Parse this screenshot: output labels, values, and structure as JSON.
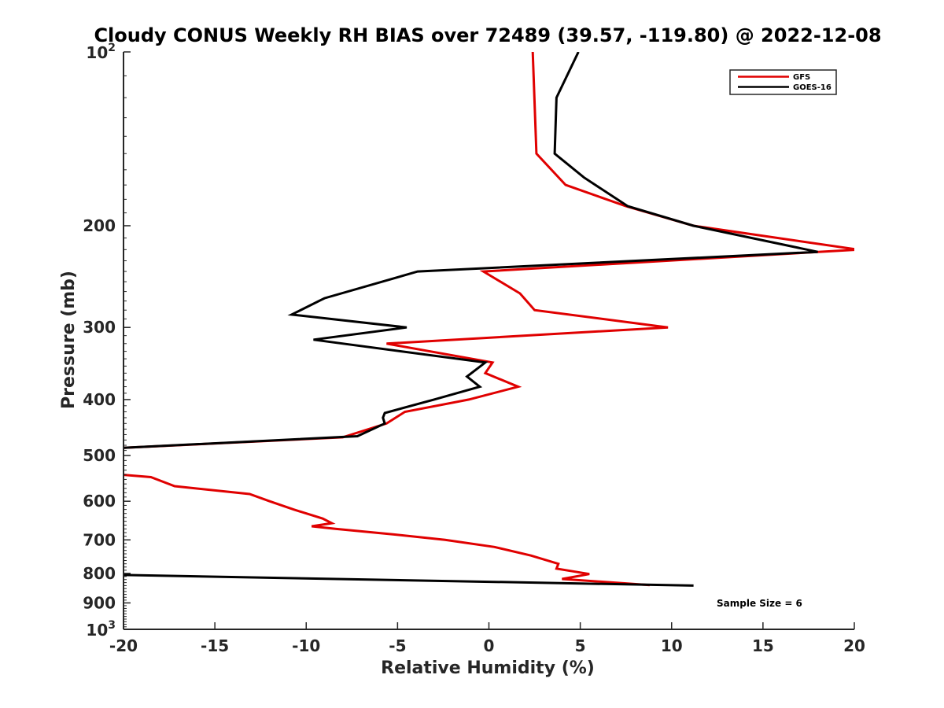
{
  "chart_data": {
    "type": "line",
    "title": "Cloudy CONUS Weekly RH BIAS over 72489 (39.57, -119.80) @ 2022-12-08",
    "xlabel": "Relative Humidity (%)",
    "ylabel": "Pressure (mb)",
    "xlim": [
      -20,
      20
    ],
    "ylim": [
      100,
      1000
    ],
    "y_scale": "log",
    "y_inverted": true,
    "grid": false,
    "legend_position": "top-right",
    "x_ticks": [
      -20,
      -15,
      -10,
      -5,
      0,
      5,
      10,
      15,
      20
    ],
    "x_tick_labels": [
      "-20",
      "-15",
      "-10",
      "-5",
      "0",
      "5",
      "10",
      "15",
      "20"
    ],
    "y_ticks": [
      200,
      300,
      400,
      500,
      600,
      700,
      800,
      900
    ],
    "y_tick_labels": [
      "200",
      "300",
      "400",
      "500",
      "600",
      "700",
      "800",
      "900"
    ],
    "y_end_labels": [
      {
        "value": 100,
        "base": "10",
        "exp": "2"
      },
      {
        "value": 1000,
        "base": "10",
        "exp": "3"
      }
    ],
    "annotation": "Sample Size = 6",
    "series": [
      {
        "name": "GFS",
        "color": "#e00000",
        "segments": [
          [
            {
              "x": 2.4,
              "y": 100
            },
            {
              "x": 2.6,
              "y": 150
            },
            {
              "x": 4.2,
              "y": 170
            },
            {
              "x": 7.5,
              "y": 185
            },
            {
              "x": 11.2,
              "y": 200
            },
            {
              "x": 20.2,
              "y": 220
            },
            {
              "x": -0.3,
              "y": 240
            },
            {
              "x": 1.7,
              "y": 262
            },
            {
              "x": 2.5,
              "y": 280
            },
            {
              "x": 9.8,
              "y": 300
            },
            {
              "x": -5.6,
              "y": 320
            },
            {
              "x": 0.2,
              "y": 345
            },
            {
              "x": -0.2,
              "y": 360
            },
            {
              "x": 1.6,
              "y": 380
            },
            {
              "x": -1.1,
              "y": 400
            },
            {
              "x": -4.6,
              "y": 420
            },
            {
              "x": -5.6,
              "y": 440
            },
            {
              "x": -8.0,
              "y": 465
            },
            {
              "x": -20.0,
              "y": 485
            }
          ],
          [
            {
              "x": -20.0,
              "y": 540
            },
            {
              "x": -18.5,
              "y": 545
            },
            {
              "x": -17.2,
              "y": 565
            },
            {
              "x": -13.1,
              "y": 583
            },
            {
              "x": -12.0,
              "y": 600
            },
            {
              "x": -10.7,
              "y": 620
            },
            {
              "x": -9.1,
              "y": 643
            },
            {
              "x": -8.6,
              "y": 655
            },
            {
              "x": -9.7,
              "y": 663
            },
            {
              "x": -8.4,
              "y": 670
            },
            {
              "x": -5.2,
              "y": 685
            },
            {
              "x": -2.4,
              "y": 700
            },
            {
              "x": 0.3,
              "y": 720
            },
            {
              "x": 2.3,
              "y": 745
            },
            {
              "x": 3.8,
              "y": 770
            },
            {
              "x": 3.7,
              "y": 785
            },
            {
              "x": 5.5,
              "y": 802
            },
            {
              "x": 4.0,
              "y": 818
            },
            {
              "x": 8.8,
              "y": 838
            }
          ]
        ]
      },
      {
        "name": "GOES-16",
        "color": "#000000",
        "segments": [
          [
            {
              "x": 4.9,
              "y": 100
            },
            {
              "x": 3.7,
              "y": 120
            },
            {
              "x": 3.6,
              "y": 150
            },
            {
              "x": 5.2,
              "y": 165
            },
            {
              "x": 7.6,
              "y": 185
            },
            {
              "x": 11.2,
              "y": 200
            },
            {
              "x": 18.0,
              "y": 222
            },
            {
              "x": -3.9,
              "y": 240
            },
            {
              "x": -9.0,
              "y": 267
            },
            {
              "x": -10.8,
              "y": 285
            },
            {
              "x": -4.5,
              "y": 300
            },
            {
              "x": -9.6,
              "y": 315
            },
            {
              "x": -0.2,
              "y": 345
            },
            {
              "x": -1.2,
              "y": 365
            },
            {
              "x": -0.5,
              "y": 380
            },
            {
              "x": -3.0,
              "y": 400
            },
            {
              "x": -5.7,
              "y": 422
            },
            {
              "x": -5.8,
              "y": 430
            },
            {
              "x": -5.7,
              "y": 440
            },
            {
              "x": -7.2,
              "y": 463
            },
            {
              "x": -20.0,
              "y": 485
            }
          ],
          [
            {
              "x": -20.0,
              "y": 805
            },
            {
              "x": 11.2,
              "y": 840
            }
          ]
        ]
      }
    ]
  }
}
